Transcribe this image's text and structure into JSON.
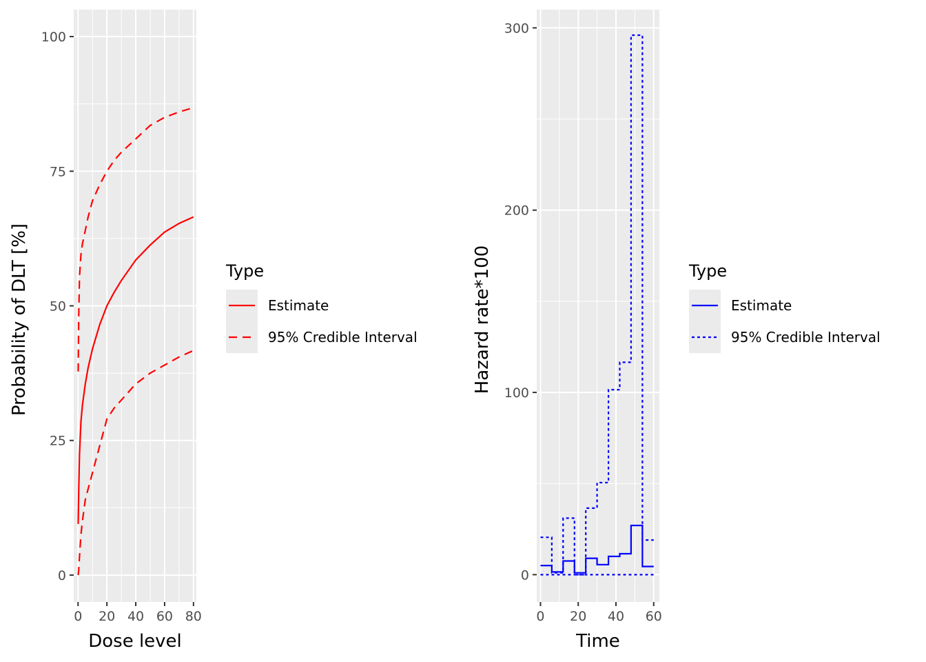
{
  "colors": {
    "panel_bg": "#ebebeb",
    "grid": "#ffffff",
    "tick": "#333333",
    "tick_label": "#4d4d4d",
    "legend_key_bg": "#ebebeb"
  },
  "chart_data": [
    {
      "type": "line",
      "xlabel": "Dose level",
      "ylabel": "Probability of DLT [%]",
      "xlim": [
        -3,
        82
      ],
      "ylim": [
        -5,
        105
      ],
      "x_ticks": [
        0,
        20,
        40,
        60,
        80
      ],
      "x_tick_labels": [
        "0",
        "20",
        "40",
        "60",
        "80"
      ],
      "y_ticks": [
        0,
        25,
        50,
        75,
        100
      ],
      "y_tick_labels": [
        "0",
        "25",
        "50",
        "75",
        "100"
      ],
      "grid": true,
      "legend": {
        "title": "Type",
        "placement": "right",
        "entries": [
          "Estimate",
          "95% Credible Interval"
        ]
      },
      "color": "#ff0000",
      "x": [
        0.1,
        0.5,
        1,
        2,
        3,
        5,
        7,
        10,
        15,
        20,
        25,
        30,
        40,
        50,
        60,
        70,
        80
      ],
      "series": [
        {
          "name": "Estimate",
          "style": "solid",
          "values": [
            9.5,
            16,
            22.5,
            28.5,
            31.5,
            35.5,
            38.5,
            42,
            46.5,
            50,
            52.5,
            54.7,
            58.5,
            61.3,
            63.7,
            65.3,
            66.5
          ]
        },
        {
          "name": "95% Credible Interval",
          "style": "dashed",
          "values": [
            0,
            1,
            3.5,
            7.5,
            10,
            14,
            16,
            19,
            24,
            29,
            31,
            32.5,
            35.5,
            37.5,
            39,
            40.5,
            41.7
          ]
        },
        {
          "name": "95% Credible Interval",
          "style": "dashed",
          "values": [
            37.8,
            48.5,
            55.5,
            59.5,
            61.5,
            64,
            66.5,
            69.5,
            72.5,
            75,
            77,
            78.5,
            81,
            83.5,
            85,
            86,
            86.8
          ]
        }
      ]
    },
    {
      "type": "line",
      "xlabel": "Time",
      "ylabel": "Hazard rate*100",
      "xlim": [
        -2,
        63
      ],
      "ylim": [
        -15,
        310
      ],
      "x_ticks": [
        0,
        20,
        40,
        60
      ],
      "x_tick_labels": [
        "0",
        "20",
        "40",
        "60"
      ],
      "y_ticks": [
        0,
        100,
        200,
        300
      ],
      "y_tick_labels": [
        "0",
        "100",
        "200",
        "300"
      ],
      "grid": true,
      "legend": {
        "title": "Type",
        "placement": "right",
        "entries": [
          "Estimate",
          "95% Credible Interval"
        ]
      },
      "color": "#0000ff",
      "step_edges": [
        0,
        6,
        12,
        18,
        24,
        30,
        36,
        42,
        48,
        54,
        60
      ],
      "series": [
        {
          "name": "Estimate",
          "style": "solid",
          "values": [
            5,
            1.5,
            7.5,
            1,
            9,
            5.5,
            10,
            11.5,
            27,
            4.5
          ]
        },
        {
          "name": "95% Credible Interval",
          "style": "dotted",
          "values": [
            20.5,
            1,
            31,
            0,
            36.5,
            50.5,
            101.5,
            116.5,
            296,
            19
          ]
        },
        {
          "name": "95% Credible Interval",
          "style": "dotted",
          "values": [
            0,
            0,
            0,
            0,
            0,
            0,
            0,
            0,
            0,
            0
          ]
        }
      ]
    }
  ]
}
